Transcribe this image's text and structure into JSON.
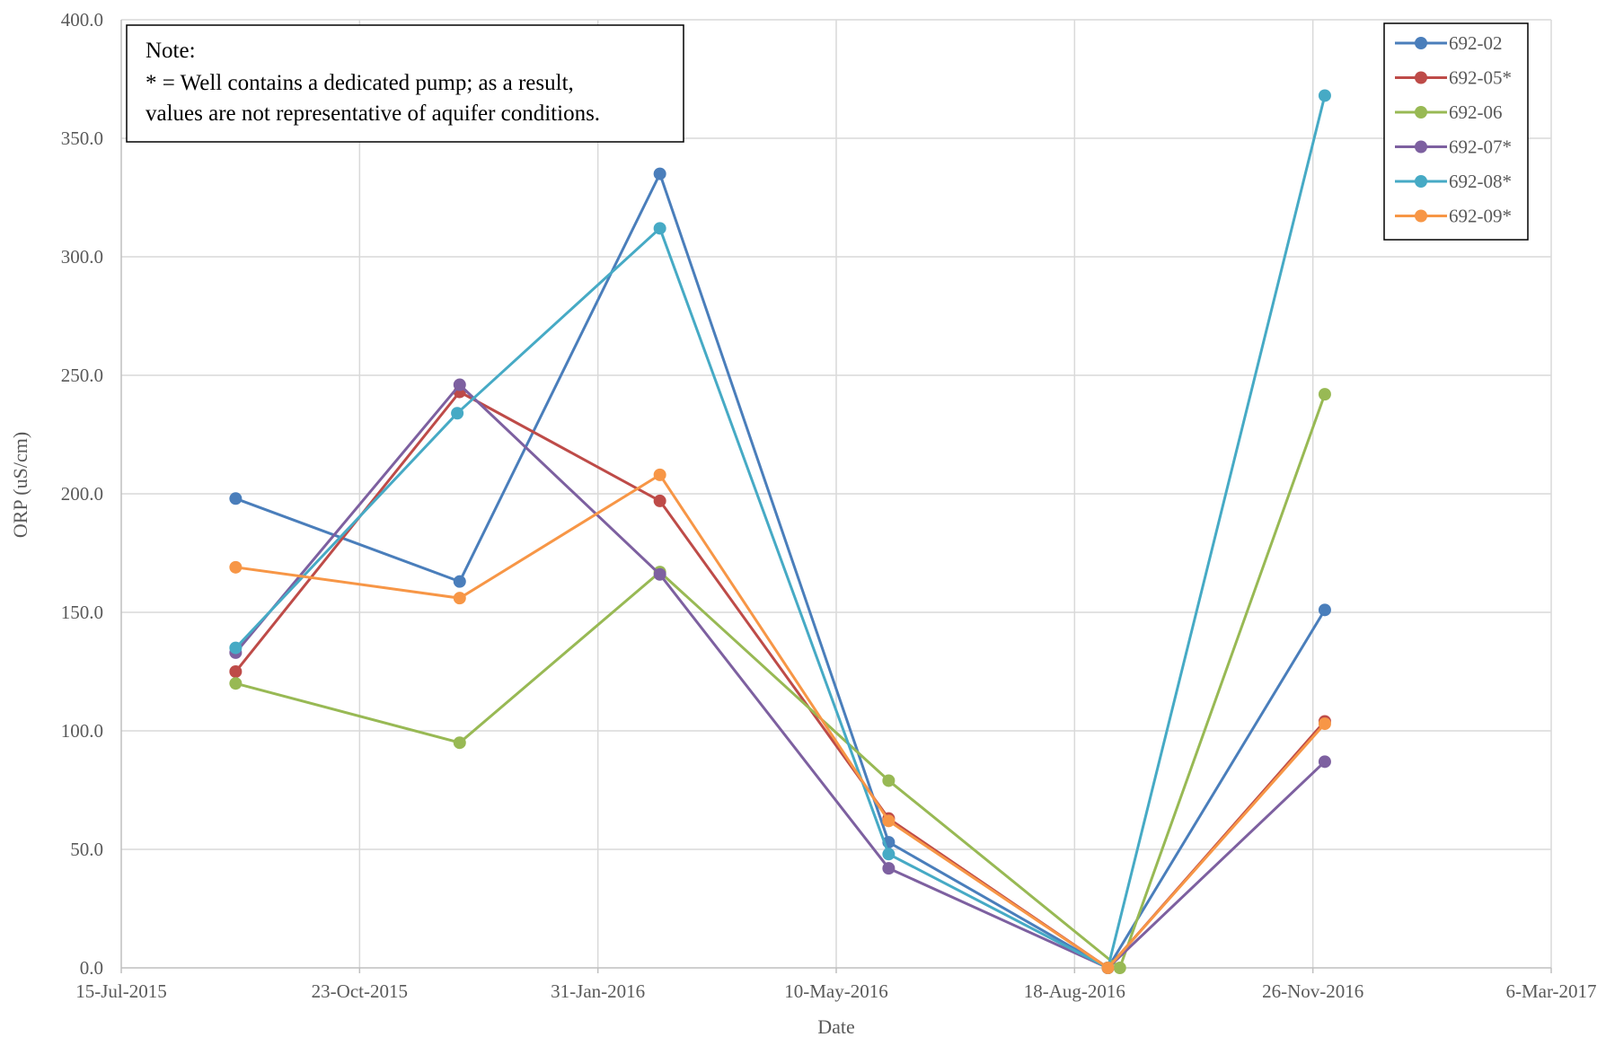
{
  "chart_data": {
    "type": "line",
    "title": "",
    "xlabel": "Date",
    "ylabel": "ORP (uS/cm)",
    "x_axis_type": "date",
    "xlim": [
      "2015-07-15",
      "2017-03-06"
    ],
    "ylim": [
      0,
      400
    ],
    "grid": true,
    "legend_position": "top-right",
    "x_ticks": [
      "15-Jul-2015",
      "23-Oct-2015",
      "31-Jan-2016",
      "10-May-2016",
      "18-Aug-2016",
      "26-Nov-2016",
      "6-Mar-2017"
    ],
    "y_ticks": [
      "0.0",
      "50.0",
      "100.0",
      "150.0",
      "200.0",
      "250.0",
      "300.0",
      "350.0",
      "400.0"
    ],
    "series": [
      {
        "name": "692-02",
        "color": "#4A7EBB",
        "x": [
          "2015-09-01",
          "2015-12-04",
          "2016-02-26",
          "2016-06-01",
          "2016-09-01",
          "2016-12-01"
        ],
        "y": [
          198,
          163,
          335,
          53,
          0,
          151
        ]
      },
      {
        "name": "692-05*",
        "color": "#BE4B48",
        "x": [
          "2015-09-01",
          "2015-12-04",
          "2016-02-26",
          "2016-06-01",
          "2016-09-01",
          "2016-12-01"
        ],
        "y": [
          125,
          243,
          197,
          63,
          0,
          104
        ]
      },
      {
        "name": "692-06",
        "color": "#98B954",
        "x": [
          "2015-09-01",
          "2015-12-04",
          "2016-02-26",
          "2016-06-01",
          "2016-09-06",
          "2016-12-01"
        ],
        "y": [
          120,
          95,
          167,
          79,
          0,
          242
        ]
      },
      {
        "name": "692-07*",
        "color": "#7D60A0",
        "x": [
          "2015-09-01",
          "2015-12-04",
          "2016-02-26",
          "2016-06-01",
          "2016-09-01",
          "2016-12-01"
        ],
        "y": [
          133,
          246,
          166,
          42,
          0,
          87
        ]
      },
      {
        "name": "692-08*",
        "color": "#46AAC5",
        "x": [
          "2015-09-01",
          "2015-12-03",
          "2016-02-26",
          "2016-06-01",
          "2016-09-01",
          "2016-12-01"
        ],
        "y": [
          135,
          234,
          312,
          48,
          0,
          368
        ]
      },
      {
        "name": "692-09*",
        "color": "#F79646",
        "x": [
          "2015-09-01",
          "2015-12-04",
          "2016-02-26",
          "2016-06-01",
          "2016-09-01",
          "2016-12-01"
        ],
        "y": [
          169,
          156,
          208,
          62,
          0,
          103
        ]
      }
    ]
  },
  "note": {
    "lines": [
      "Note:",
      "* = Well contains a dedicated pump; as a result,",
      "values are not representative of aquifer conditions."
    ]
  }
}
